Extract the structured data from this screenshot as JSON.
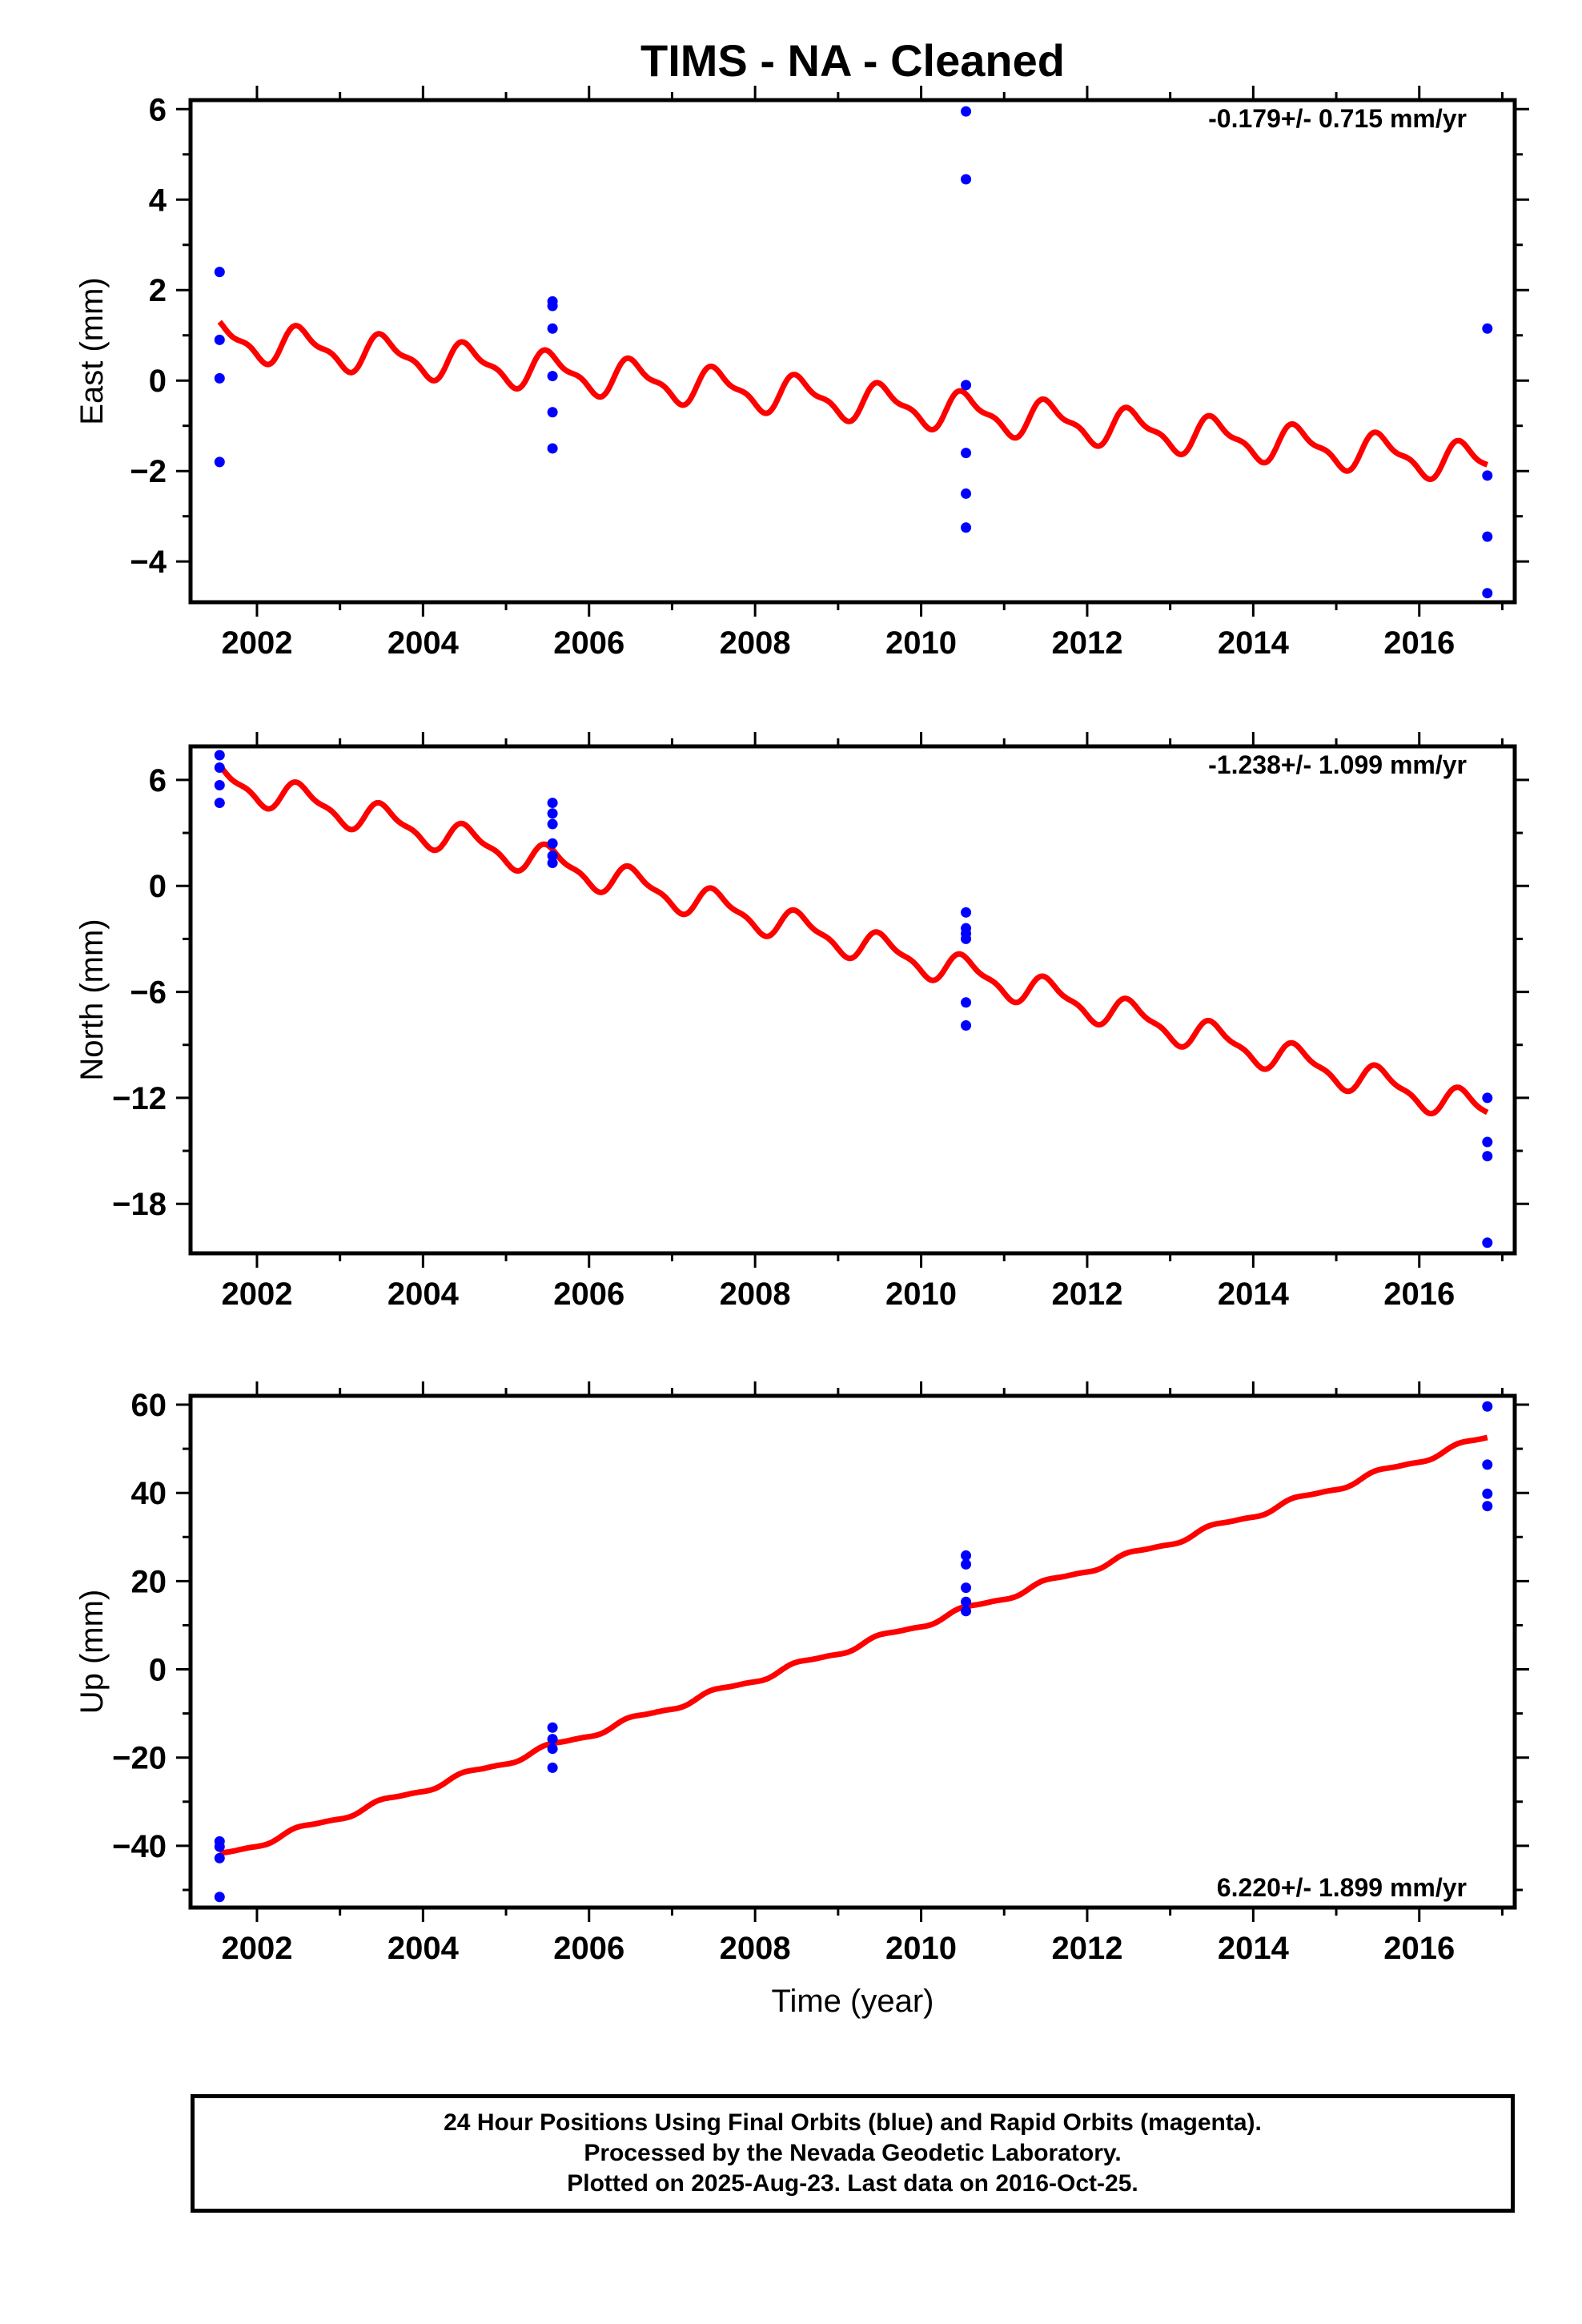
{
  "title": "TIMS  - NA - Cleaned",
  "colors": {
    "model_line": "#ff0000",
    "data_points": "#0000ff",
    "axes": "#000000"
  },
  "footer": {
    "line1": "24 Hour Positions Using Final Orbits (blue) and Rapid Orbits (magenta).",
    "line2": "Processed by the Nevada Geodetic Laboratory.",
    "line3": "Plotted on 2025-Aug-23. Last data on 2016-Oct-25."
  },
  "chart_data": [
    {
      "type": "scatter",
      "component": "east",
      "ylabel": "East (mm)",
      "xlabel": "",
      "velocity": "-0.179+/- 0.715 mm/yr",
      "velocity_position": "top-right",
      "xlim": [
        2001.2,
        2017.15
      ],
      "ylim": [
        -4.9,
        6.2
      ],
      "xticks": [
        2002,
        2004,
        2006,
        2008,
        2010,
        2012,
        2014,
        2016
      ],
      "yticks": [
        -4,
        -2,
        0,
        2,
        4,
        6
      ],
      "ytick_labels": [
        "−4",
        "−2",
        "0",
        "2",
        "4",
        "6"
      ],
      "points": [
        [
          2001.55,
          2.4
        ],
        [
          2001.55,
          0.9
        ],
        [
          2001.55,
          0.05
        ],
        [
          2001.55,
          -1.8
        ],
        [
          2005.56,
          1.75
        ],
        [
          2005.56,
          1.65
        ],
        [
          2005.56,
          1.15
        ],
        [
          2005.56,
          0.1
        ],
        [
          2005.56,
          -0.7
        ],
        [
          2005.56,
          -1.5
        ],
        [
          2010.54,
          5.95
        ],
        [
          2010.54,
          4.45
        ],
        [
          2010.54,
          -0.1
        ],
        [
          2010.54,
          -1.6
        ],
        [
          2010.54,
          -2.5
        ],
        [
          2010.54,
          -3.25
        ],
        [
          2016.82,
          1.15
        ],
        [
          2016.82,
          -2.1
        ],
        [
          2016.82,
          -3.45
        ],
        [
          2016.82,
          -4.7
        ]
      ],
      "model": {
        "segments": [
          {
            "x": [
              2001.55,
              2005.56
            ],
            "y0": 0.92,
            "y1": 0.2
          },
          {
            "x": [
              2005.56,
              2010.54
            ],
            "y0": 0.2,
            "y1": -0.7
          },
          {
            "x": [
              2010.54,
              2016.82
            ],
            "y0": -0.7,
            "y1": -1.85
          }
        ],
        "seasonal_amplitude": 0.38,
        "semiannual_amplitude": 0.15
      }
    },
    {
      "type": "scatter",
      "component": "north",
      "ylabel": "North (mm)",
      "xlabel": "",
      "velocity": "-1.238+/- 1.099 mm/yr",
      "velocity_position": "top-right",
      "xlim": [
        2001.2,
        2017.15
      ],
      "ylim": [
        -20.8,
        7.9
      ],
      "xticks": [
        2002,
        2004,
        2006,
        2008,
        2010,
        2012,
        2014,
        2016
      ],
      "yticks": [
        -18,
        -12,
        -6,
        0,
        6
      ],
      "ytick_labels": [
        "−18",
        "−12",
        "−6",
        "0",
        "6"
      ],
      "points": [
        [
          2001.55,
          7.4
        ],
        [
          2001.55,
          6.7
        ],
        [
          2001.55,
          5.7
        ],
        [
          2001.55,
          4.7
        ],
        [
          2005.56,
          4.7
        ],
        [
          2005.56,
          4.1
        ],
        [
          2005.56,
          3.5
        ],
        [
          2005.56,
          2.4
        ],
        [
          2005.56,
          1.7
        ],
        [
          2005.56,
          1.3
        ],
        [
          2010.54,
          -1.5
        ],
        [
          2010.54,
          -2.4
        ],
        [
          2010.54,
          -2.7
        ],
        [
          2010.54,
          -3.0
        ],
        [
          2010.54,
          -6.6
        ],
        [
          2010.54,
          -7.9
        ],
        [
          2016.82,
          -12.0
        ],
        [
          2016.82,
          -14.5
        ],
        [
          2016.82,
          -15.3
        ],
        [
          2016.82,
          -20.2
        ]
      ],
      "model": {
        "segments": [
          {
            "x": [
              2001.55,
              2005.56
            ],
            "y0": 6.0,
            "y1": 1.3
          },
          {
            "x": [
              2005.56,
              2010.54
            ],
            "y0": 1.3,
            "y1": -4.9
          },
          {
            "x": [
              2010.54,
              2016.82
            ],
            "y0": -4.9,
            "y1": -12.8
          }
        ],
        "seasonal_amplitude": 0.8,
        "semiannual_amplitude": 0.3
      }
    },
    {
      "type": "scatter",
      "component": "up",
      "ylabel": "Up (mm)",
      "xlabel": "Time (year)",
      "velocity": "6.220+/- 1.899 mm/yr",
      "velocity_position": "bottom-right",
      "xlim": [
        2001.2,
        2017.15
      ],
      "ylim": [
        -54,
        62
      ],
      "xticks": [
        2002,
        2004,
        2006,
        2008,
        2010,
        2012,
        2014,
        2016
      ],
      "yticks": [
        -40,
        -20,
        0,
        20,
        40,
        60
      ],
      "ytick_labels": [
        "−40",
        "−20",
        "0",
        "20",
        "40",
        "60"
      ],
      "points": [
        [
          2001.55,
          -39.0
        ],
        [
          2001.55,
          -40.2
        ],
        [
          2001.55,
          -42.8
        ],
        [
          2001.55,
          -51.6
        ],
        [
          2005.56,
          -13.2
        ],
        [
          2005.56,
          -15.8
        ],
        [
          2005.56,
          -18.0
        ],
        [
          2005.56,
          -22.3
        ],
        [
          2010.54,
          25.8
        ],
        [
          2010.54,
          23.8
        ],
        [
          2010.54,
          18.5
        ],
        [
          2010.54,
          15.3
        ],
        [
          2010.54,
          13.2
        ],
        [
          2016.82,
          59.6
        ],
        [
          2016.82,
          46.4
        ],
        [
          2016.82,
          39.8
        ],
        [
          2016.82,
          37.0
        ]
      ],
      "model": {
        "segments": [
          {
            "x": [
              2001.55,
              2016.82
            ],
            "y0": -42.4,
            "y1": 52.6
          }
        ],
        "seasonal_amplitude": 0.7,
        "semiannual_amplitude": 0.2
      }
    }
  ]
}
